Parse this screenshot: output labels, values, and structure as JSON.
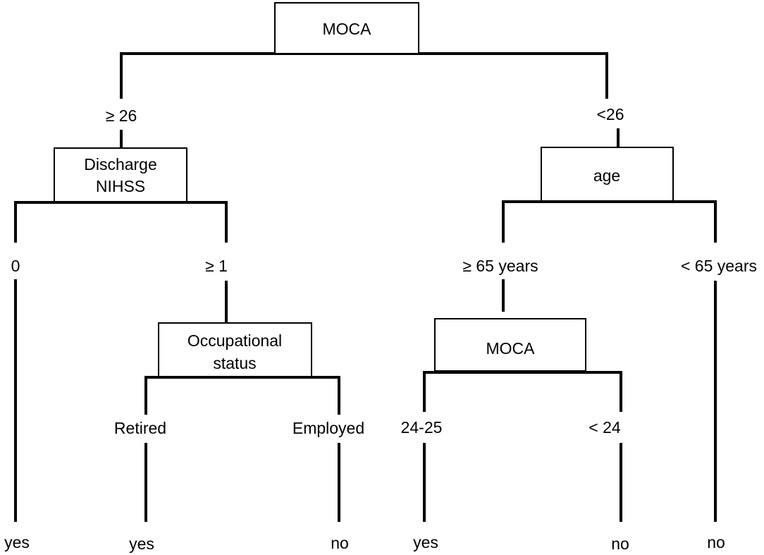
{
  "nodes": {
    "root": {
      "label": "MOCA"
    },
    "discharge_nihss": {
      "lines": [
        "Discharge",
        "NIHSS"
      ]
    },
    "age": {
      "label": "age"
    },
    "occupational_status": {
      "lines": [
        "Occupational",
        "status"
      ]
    },
    "moca_sub": {
      "label": "MOCA"
    }
  },
  "branches": {
    "root_left": "≥ 26",
    "root_right": "<26",
    "nihss_left": "0",
    "nihss_right": "≥ 1",
    "age_left": "≥ 65 years",
    "age_right": "< 65 years",
    "occupation_left": "Retired",
    "occupation_right": "Employed",
    "moca_sub_left": "24-25",
    "moca_sub_right": "< 24"
  },
  "leaves": {
    "nihss_zero": "yes",
    "retired": "yes",
    "employed": "no",
    "moca_24_25": "yes",
    "moca_lt_24": "no",
    "age_lt_65": "no"
  }
}
